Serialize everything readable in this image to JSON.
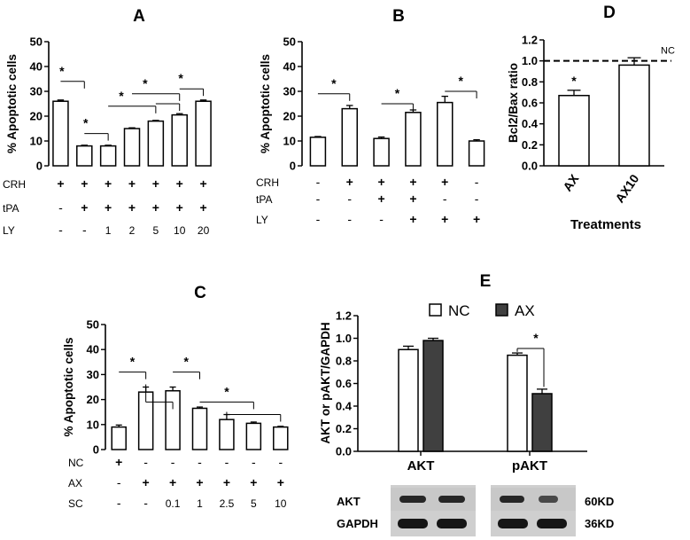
{
  "chart_data": [
    {
      "panel": "A",
      "type": "bar",
      "ylabel": "% Apoptotic cells",
      "ylim": [
        0,
        50
      ],
      "yticks": [
        "0",
        "10",
        "20",
        "30",
        "40",
        "50"
      ],
      "values": [
        26,
        8,
        8,
        15,
        18,
        20.5,
        26
      ],
      "errors": [
        0.5,
        0.3,
        0.3,
        0.3,
        0.3,
        0.5,
        0.5
      ],
      "colors": [
        "#ffffff",
        "#ffffff",
        "#ffffff",
        "#ffffff",
        "#ffffff",
        "#ffffff",
        "#ffffff"
      ],
      "rows": [
        {
          "label": "CRH",
          "cells": [
            "+",
            "+",
            "+",
            "+",
            "+",
            "+",
            "+"
          ]
        },
        {
          "label": "tPA",
          "cells": [
            "-",
            "+",
            "+",
            "+",
            "+",
            "+",
            "+"
          ]
        },
        {
          "label": "LY",
          "cells": [
            "-",
            "-",
            "1",
            "2",
            "5",
            "10",
            "20"
          ]
        }
      ],
      "significance": [
        {
          "from": 0,
          "to": 1,
          "level": 34,
          "label": "*"
        },
        {
          "from": 1,
          "to": 2,
          "level": 13,
          "label": "*"
        },
        {
          "from": 2,
          "to": 4,
          "level": 24,
          "label": "*"
        },
        {
          "from": 3,
          "to": 5,
          "level": 29,
          "label": "*"
        },
        {
          "from": 4,
          "to": 5,
          "level": 25,
          "label": ""
        },
        {
          "from": 5,
          "to": 6,
          "level": 31,
          "label": "*"
        }
      ]
    },
    {
      "panel": "B",
      "type": "bar",
      "ylabel": "% Apoptotic cells",
      "ylim": [
        0,
        50
      ],
      "yticks": [
        "0",
        "10",
        "20",
        "30",
        "40",
        "50"
      ],
      "values": [
        11.5,
        23,
        11,
        21.5,
        25.5,
        10
      ],
      "errors": [
        0.3,
        1.3,
        0.6,
        1.0,
        2.5,
        0.5
      ],
      "colors": [
        "#ffffff",
        "#ffffff",
        "#ffffff",
        "#ffffff",
        "#ffffff",
        "#ffffff"
      ],
      "rows": [
        {
          "label": "CRH",
          "cells": [
            "-",
            "+",
            "+",
            "+",
            "+",
            "-"
          ]
        },
        {
          "label": "tPA",
          "cells": [
            "-",
            "-",
            "+",
            "+",
            "-",
            "-"
          ]
        },
        {
          "label": "LY",
          "cells": [
            "-",
            "-",
            "-",
            "+",
            "+",
            "+"
          ]
        }
      ],
      "significance": [
        {
          "from": 0,
          "to": 1,
          "level": 29,
          "label": "*"
        },
        {
          "from": 2,
          "to": 3,
          "level": 25,
          "label": "*"
        },
        {
          "from": 4,
          "to": 5,
          "level": 30,
          "label": "*"
        }
      ]
    },
    {
      "panel": "C",
      "type": "bar",
      "ylabel": "% Apoptotic cells",
      "ylim": [
        0,
        50
      ],
      "yticks": [
        "0",
        "10",
        "20",
        "30",
        "40",
        "50"
      ],
      "values": [
        9,
        23,
        23.5,
        16.5,
        12,
        10.5,
        9
      ],
      "errors": [
        0.8,
        2.0,
        1.5,
        0.5,
        2.0,
        0.5,
        0.3
      ],
      "colors": [
        "#ffffff",
        "#ffffff",
        "#ffffff",
        "#ffffff",
        "#ffffff",
        "#ffffff",
        "#ffffff"
      ],
      "rows": [
        {
          "label": "NC",
          "cells": [
            "+",
            "-",
            "-",
            "-",
            "-",
            "-",
            "-"
          ]
        },
        {
          "label": "AX",
          "cells": [
            "-",
            "+",
            "+",
            "+",
            "+",
            "+",
            "+"
          ]
        },
        {
          "label": "SC",
          "cells": [
            "-",
            "-",
            "0.1",
            "1",
            "2.5",
            "5",
            "10"
          ]
        }
      ],
      "significance": [
        {
          "from": 0,
          "to": 1,
          "level": 31,
          "label": "*"
        },
        {
          "from": 1,
          "to": 2,
          "level": 19,
          "label": ""
        },
        {
          "from": 2,
          "to": 3,
          "level": 31,
          "label": "*"
        },
        {
          "from": 3,
          "to": 5,
          "level": 19,
          "label": "*"
        },
        {
          "from": 4,
          "to": 6,
          "level": 14,
          "label": ""
        }
      ]
    },
    {
      "panel": "D",
      "type": "bar",
      "ylabel": "Bcl2/Bax ratio",
      "xlabel": "Treatments",
      "ylim": [
        0,
        1.2
      ],
      "yticks": [
        "0.0",
        "0.2",
        "0.4",
        "0.6",
        "0.8",
        "1.0",
        "1.2"
      ],
      "categories": [
        "AX",
        "AX10"
      ],
      "values": [
        0.67,
        0.96
      ],
      "errors": [
        0.05,
        0.07
      ],
      "colors": [
        "#ffffff",
        "#ffffff"
      ],
      "reference_line": {
        "value": 1.0,
        "label": "NC"
      },
      "bar_labels": [
        "*",
        ""
      ]
    },
    {
      "panel": "E",
      "type": "bar",
      "ylabel": "AKT or pAKT/GAPDH",
      "ylim": [
        0,
        1.2
      ],
      "yticks": [
        "0.0",
        "0.2",
        "0.4",
        "0.6",
        "0.8",
        "1.0",
        "1.2"
      ],
      "categories": [
        "AKT",
        "pAKT"
      ],
      "series": [
        {
          "name": "NC",
          "values": [
            0.9,
            0.85
          ],
          "errors": [
            0.03,
            0.02
          ],
          "color": "#ffffff"
        },
        {
          "name": "AX",
          "values": [
            0.98,
            0.51
          ],
          "errors": [
            0.02,
            0.04
          ],
          "color": "#404040"
        }
      ],
      "legend": "top",
      "significance": [
        {
          "category": 1,
          "label": "*"
        }
      ],
      "blot": {
        "rows": [
          "AKT",
          "GAPDH"
        ],
        "sizes": [
          "60KD",
          "36KD"
        ]
      }
    }
  ],
  "panel_letters": [
    "A",
    "B",
    "C",
    "D",
    "E"
  ]
}
